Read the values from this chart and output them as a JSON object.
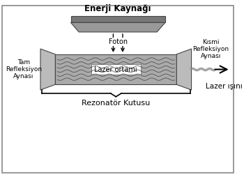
{
  "bg_color": "#ffffff",
  "border_color": "#888888",
  "energy_source_label": "Enerji Kaynağı",
  "foton_label": "Foton",
  "laser_medium_label": "Lazer ortamı",
  "full_mirror_label": "Tam\nRefleksiyon\nAynası",
  "partial_mirror_label": "Kısmi\nRefleksiyon\nAynası",
  "resonator_label": "Rezonatör Kutusu",
  "laser_beam_label": "Lazer ışını",
  "gray_dark": "#777777",
  "gray_medium": "#999999",
  "gray_light": "#bbbbbb",
  "gray_lighter": "#cccccc",
  "gray_tube": "#aaaaaa",
  "wavy_color": "#444444"
}
